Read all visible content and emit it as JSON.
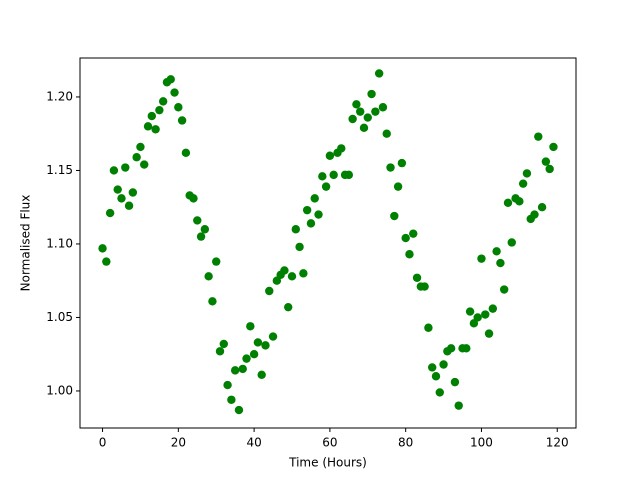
{
  "chart_data": {
    "type": "scatter",
    "xlabel": "Time (Hours)",
    "ylabel": "Normalised Flux",
    "color": "#008000",
    "x": [
      0,
      1,
      2,
      3,
      4,
      5,
      6,
      7,
      8,
      9,
      10,
      11,
      12,
      13,
      14,
      15,
      16,
      17,
      18,
      19,
      20,
      21,
      22,
      23,
      24,
      25,
      26,
      27,
      28,
      29,
      30,
      31,
      32,
      33,
      34,
      35,
      36,
      37,
      38,
      39,
      40,
      41,
      42,
      43,
      44,
      45,
      46,
      47,
      48,
      49,
      50,
      51,
      52,
      53,
      54,
      55,
      56,
      57,
      58,
      59,
      60,
      61,
      62,
      63,
      64,
      65,
      66,
      67,
      68,
      69,
      70,
      71,
      72,
      73,
      74,
      75,
      76,
      77,
      78,
      79,
      80,
      81,
      82,
      83,
      84,
      85,
      86,
      87,
      88,
      89,
      90,
      91,
      92,
      93,
      94,
      95,
      96,
      97,
      98,
      99,
      100,
      101,
      102,
      103,
      104,
      105,
      106,
      107,
      108,
      109,
      110,
      111,
      112,
      113,
      114,
      115,
      116,
      117,
      118,
      119
    ],
    "y": [
      1.097,
      1.088,
      1.121,
      1.15,
      1.137,
      1.131,
      1.152,
      1.126,
      1.135,
      1.159,
      1.166,
      1.154,
      1.18,
      1.187,
      1.178,
      1.191,
      1.197,
      1.21,
      1.212,
      1.203,
      1.193,
      1.184,
      1.162,
      1.133,
      1.131,
      1.116,
      1.105,
      1.11,
      1.078,
      1.061,
      1.088,
      1.027,
      1.032,
      1.004,
      0.994,
      1.014,
      0.987,
      1.015,
      1.022,
      1.044,
      1.025,
      1.033,
      1.011,
      1.031,
      1.068,
      1.037,
      1.075,
      1.079,
      1.082,
      1.057,
      1.078,
      1.11,
      1.098,
      1.08,
      1.123,
      1.114,
      1.131,
      1.12,
      1.146,
      1.139,
      1.16,
      1.147,
      1.162,
      1.165,
      1.147,
      1.147,
      1.185,
      1.195,
      1.19,
      1.179,
      1.186,
      1.202,
      1.19,
      1.216,
      1.193,
      1.175,
      1.152,
      1.119,
      1.139,
      1.155,
      1.104,
      1.093,
      1.107,
      1.077,
      1.071,
      1.071,
      1.043,
      1.016,
      1.01,
      0.999,
      1.018,
      1.027,
      1.029,
      1.006,
      0.99,
      1.029,
      1.029,
      1.054,
      1.046,
      1.05,
      1.09,
      1.052,
      1.039,
      1.056,
      1.095,
      1.087,
      1.069,
      1.128,
      1.101,
      1.131,
      1.129,
      1.141,
      1.148,
      1.117,
      1.12,
      1.173,
      1.125,
      1.156,
      1.151,
      1.166
    ],
    "xlim": [
      -5.95,
      124.95
    ],
    "ylim": [
      0.9748,
      1.2265
    ],
    "xticks": [
      0,
      20,
      40,
      60,
      80,
      100,
      120
    ],
    "yticks": [
      {
        "value": 1.0,
        "label": "1.00"
      },
      {
        "value": 1.05,
        "label": "1.05"
      },
      {
        "value": 1.1,
        "label": "1.10"
      },
      {
        "value": 1.15,
        "label": "1.15"
      },
      {
        "value": 1.2,
        "label": "1.20"
      }
    ]
  }
}
